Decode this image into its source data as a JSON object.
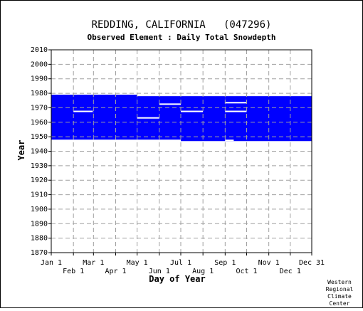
{
  "chart_data": {
    "type": "table",
    "title": "REDDING, CALIFORNIA   (047296)",
    "subtitle": "Observed Element : Daily Total Snowdepth",
    "xlabel": "Day of Year",
    "ylabel": "Year",
    "ylim": [
      1870,
      2010
    ],
    "y_ticks": [
      1870,
      1880,
      1890,
      1900,
      1910,
      1920,
      1930,
      1940,
      1950,
      1960,
      1970,
      1980,
      1990,
      2000,
      2010
    ],
    "x_ticks_top_row": [
      {
        "label": "Jan 1",
        "day": 1
      },
      {
        "label": "Mar 1",
        "day": 60
      },
      {
        "label": "May 1",
        "day": 121
      },
      {
        "label": "Jul 1",
        "day": 182
      },
      {
        "label": "Sep 1",
        "day": 244
      },
      {
        "label": "Nov 1",
        "day": 305
      },
      {
        "label": "Dec 31",
        "day": 365
      }
    ],
    "x_ticks_bottom_row": [
      {
        "label": "Feb 1",
        "day": 32
      },
      {
        "label": "Apr 1",
        "day": 91
      },
      {
        "label": "Jun 1",
        "day": 152
      },
      {
        "label": "Aug 1",
        "day": 213
      },
      {
        "label": "Oct 1",
        "day": 274
      },
      {
        "label": "Dec 1",
        "day": 335
      }
    ],
    "grid": true,
    "coverage_color": "#0000ff",
    "coverage_blocks": [
      {
        "day_start": 1,
        "day_end": 60,
        "year_start": 1948,
        "year_end": 1979
      },
      {
        "day_start": 60,
        "day_end": 121,
        "year_start": 1948,
        "year_end": 1979
      },
      {
        "day_start": 121,
        "day_end": 182,
        "year_start": 1948,
        "year_end": 1978
      },
      {
        "day_start": 182,
        "day_end": 244,
        "year_start": 1947,
        "year_end": 1978
      },
      {
        "day_start": 244,
        "day_end": 274,
        "year_start": 1947,
        "year_end": 1978
      },
      {
        "day_start": 274,
        "day_end": 365,
        "year_start": 1947,
        "year_end": 1978
      }
    ],
    "gaps": [
      {
        "day_start": 32,
        "day_end": 59,
        "year": 1967.5
      },
      {
        "day_start": 121,
        "day_end": 152,
        "year": 1963
      },
      {
        "day_start": 152,
        "day_end": 182,
        "year": 1972.5
      },
      {
        "day_start": 182,
        "day_end": 213,
        "year": 1967.5
      },
      {
        "day_start": 244,
        "day_end": 274,
        "year": 1973.5
      },
      {
        "day_start": 244,
        "day_end": 274,
        "year": 1967.5
      },
      {
        "day_start": 244,
        "day_end": 256,
        "year": 1947.5
      }
    ]
  },
  "credit": {
    "line1": "Western",
    "line2": "Regional",
    "line3": "Climate",
    "line4": "Center"
  }
}
